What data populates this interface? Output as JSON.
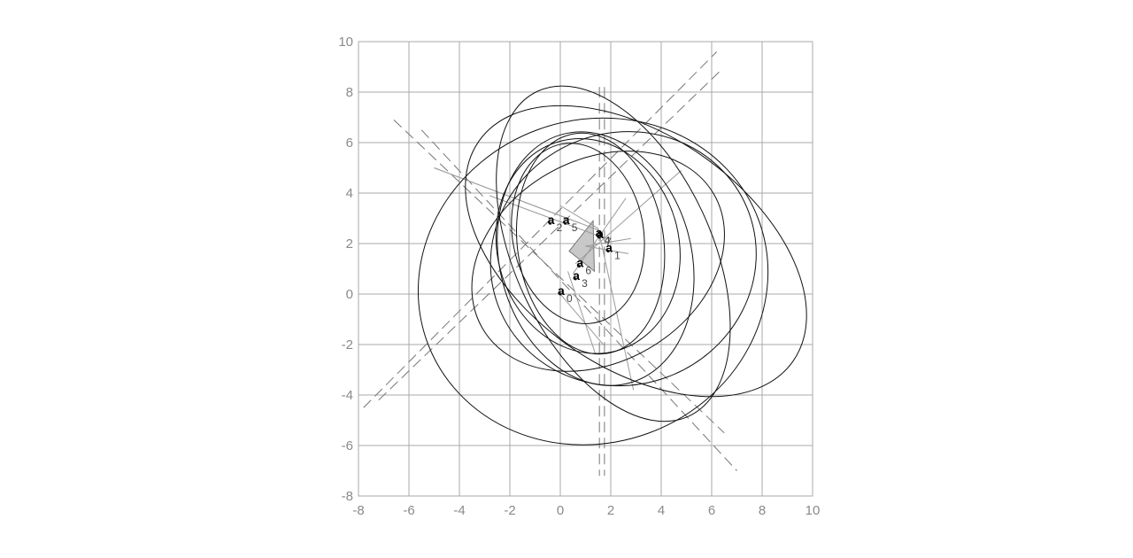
{
  "chart_data": {
    "type": "diagram",
    "xlim": [
      -8,
      10
    ],
    "ylim": [
      -8,
      10
    ],
    "grid": true,
    "x_ticks": [
      "-8",
      "-6",
      "-4",
      "-2",
      "0",
      "2",
      "4",
      "6",
      "8",
      "10"
    ],
    "y_ticks": [
      "-8",
      "-6",
      "-4",
      "-2",
      "0",
      "2",
      "4",
      "6",
      "8",
      "10"
    ],
    "ellipses": [
      {
        "cx": 0.7,
        "cy": 2.4,
        "rx": 2.6,
        "ry": 3.6,
        "angle": 10
      },
      {
        "cx": 1.1,
        "cy": 1.9,
        "rx": 3.6,
        "ry": 4.3,
        "angle": 15
      },
      {
        "cx": 1.5,
        "cy": 1.3,
        "rx": 5.3,
        "ry": 4.0,
        "angle": 30
      },
      {
        "cx": 1.2,
        "cy": 2.0,
        "rx": 2.9,
        "ry": 4.4,
        "angle": 8
      },
      {
        "cx": 1.4,
        "cy": 1.4,
        "rx": 3.8,
        "ry": 5.1,
        "angle": 15
      },
      {
        "cx": 1.3,
        "cy": 0.5,
        "rx": 7.0,
        "ry": 6.4,
        "angle": 20
      },
      {
        "cx": 2.1,
        "cy": 1.6,
        "rx": 3.9,
        "ry": 7.1,
        "angle": 25
      },
      {
        "cx": 3.0,
        "cy": 1.7,
        "rx": 7.6,
        "ry": 4.6,
        "angle": -35
      },
      {
        "cx": 2.5,
        "cy": 1.4,
        "rx": 5.3,
        "ry": 5.0,
        "angle": 20
      }
    ],
    "dashed_lines": [
      {
        "x1": 1.55,
        "y1": 8.2,
        "x2": 1.55,
        "y2": -7.2
      },
      {
        "x1": 1.75,
        "y1": 8.2,
        "x2": 1.75,
        "y2": -7.2
      },
      {
        "x1": -6.6,
        "y1": 6.9,
        "x2": 6.5,
        "y2": -5.5
      },
      {
        "x1": -5.5,
        "y1": 6.5,
        "x2": 7.0,
        "y2": -7.0
      },
      {
        "x1": -7.8,
        "y1": -4.5,
        "x2": 6.2,
        "y2": 9.6
      },
      {
        "x1": -7.2,
        "y1": -4.2,
        "x2": 6.3,
        "y2": 8.8
      }
    ],
    "solid_lines": [
      {
        "x1": -5.0,
        "y1": 5.0,
        "x2": 0.8,
        "y2": 2.8
      },
      {
        "x1": -5.0,
        "y1": 5.0,
        "x2": 1.6,
        "y2": 2.5
      },
      {
        "x1": -2.8,
        "y1": 3.9,
        "x2": 1.8,
        "y2": 2.2
      },
      {
        "x1": 1.5,
        "y1": 2.6,
        "x2": 2.9,
        "y2": -3.8
      },
      {
        "x1": 1.5,
        "y1": 2.6,
        "x2": 0.0,
        "y2": 3.5
      },
      {
        "x1": 0.5,
        "y1": 0.8,
        "x2": 2.6,
        "y2": 3.8
      },
      {
        "x1": 0.0,
        "y1": 0.0,
        "x2": 1.7,
        "y2": -2.0
      },
      {
        "x1": 1.0,
        "y1": 1.9,
        "x2": 2.7,
        "y2": 1.6
      },
      {
        "x1": 1.0,
        "y1": 1.9,
        "x2": 2.8,
        "y2": 2.2
      },
      {
        "x1": 0.3,
        "y1": 0.9,
        "x2": 1.4,
        "y2": -2.4
      },
      {
        "x1": 0.6,
        "y1": 1.2,
        "x2": 4.8,
        "y2": 4.9
      }
    ],
    "polygon": [
      [
        1.3,
        2.9
      ],
      [
        0.35,
        1.7
      ],
      [
        1.35,
        0.9
      ]
    ],
    "points": [
      {
        "name": "a",
        "sub": "0",
        "x": 0.0,
        "y": 0.0
      },
      {
        "name": "a",
        "sub": "1",
        "x": 1.9,
        "y": 1.7
      },
      {
        "name": "a",
        "sub": "2",
        "x": -0.4,
        "y": 2.8
      },
      {
        "name": "a",
        "sub": "3",
        "x": 0.6,
        "y": 0.6
      },
      {
        "name": "a",
        "sub": "4",
        "x": 1.5,
        "y": 2.3
      },
      {
        "name": "a",
        "sub": "5",
        "x": 0.2,
        "y": 2.8
      },
      {
        "name": "a",
        "sub": "6",
        "x": 0.75,
        "y": 1.1
      },
      {
        "name": "a",
        "sub": "7",
        "x": 1.55,
        "y": 2.25
      }
    ]
  }
}
